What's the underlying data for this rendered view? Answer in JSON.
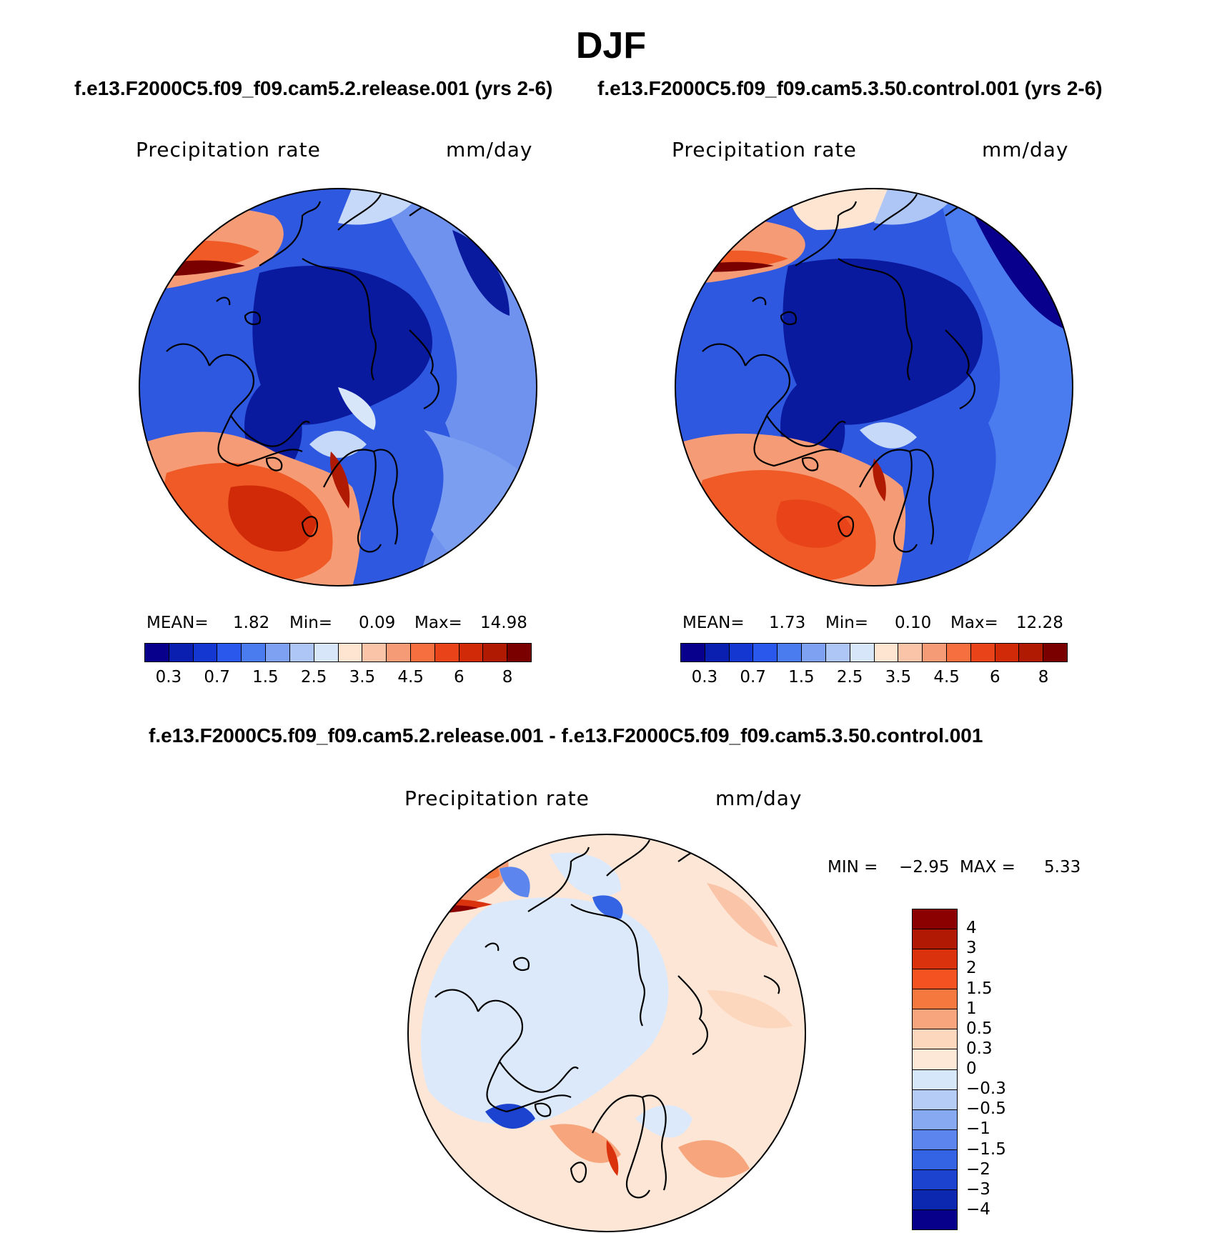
{
  "figure": {
    "season": "DJF",
    "panel1_title": "f.e13.F2000C5.f09_f09.cam5.2.release.001 (yrs 2-6)",
    "panel2_title": "f.e13.F2000C5.f09_f09.cam5.3.50.control.001 (yrs 2-6)",
    "diff_title": "f.e13.F2000C5.f09_f09.cam5.2.release.001 - f.e13.F2000C5.f09_f09.cam5.3.50.control.001"
  },
  "panels": [
    {
      "variable": "Precipitation rate",
      "units": "mm/day",
      "mean_label": "MEAN=",
      "mean_value": "1.82",
      "min_label": "Min=",
      "min_value": "0.09",
      "max_label": "Max=",
      "max_value": "14.98"
    },
    {
      "variable": "Precipitation rate",
      "units": "mm/day",
      "mean_label": "MEAN=",
      "mean_value": "1.73",
      "min_label": "Min=",
      "min_value": "0.10",
      "max_label": "Max=",
      "max_value": "12.28"
    }
  ],
  "diff_panel": {
    "variable": "Precipitation rate",
    "units": "mm/day",
    "min_label": "MIN =",
    "min_value": "−2.95",
    "max_label": "MAX =",
    "max_value": "5.33"
  },
  "colorbar_horizontal": {
    "colors": [
      "#08008c",
      "#0a1fb0",
      "#1437d2",
      "#2a58ec",
      "#4a7cf0",
      "#7ea1f2",
      "#aec6f6",
      "#d8e6fa",
      "#fde5d2",
      "#f9c4a8",
      "#f59c76",
      "#f5703e",
      "#e9431a",
      "#d12a08",
      "#b01a03",
      "#7a0000"
    ],
    "labels": [
      "0.3",
      "0.7",
      "1.5",
      "2.5",
      "3.5",
      "4.5",
      "6",
      "8"
    ]
  },
  "colorbar_vertical": {
    "colors": [
      "#8b0000",
      "#b11904",
      "#d9320c",
      "#f45220",
      "#f5793f",
      "#f7a57c",
      "#fcd7bd",
      "#fde8d8",
      "#d7e7fa",
      "#b4ccf6",
      "#86a9f2",
      "#5c86ee",
      "#3463e4",
      "#1b43cf",
      "#0c27b0",
      "#06008a"
    ],
    "labels": [
      "4",
      "3",
      "2",
      "1.5",
      "1",
      "0.5",
      "0.3",
      "0",
      "−0.3",
      "−0.5",
      "−1",
      "−1.5",
      "−2",
      "−3",
      "−4"
    ]
  },
  "map_colors": {
    "deep_blue": "#0a1a9e",
    "mid_blue": "#2f58e0",
    "light_blue": "#6f92ee",
    "pale_blue": "#c6d9f8",
    "peach": "#fbd9c2",
    "salmon": "#f59c76",
    "orange": "#ef5a26",
    "dark_red": "#c02a08",
    "diff_neutral_blue": "#dce9fb",
    "diff_neutral_peach": "#fde6d6"
  }
}
